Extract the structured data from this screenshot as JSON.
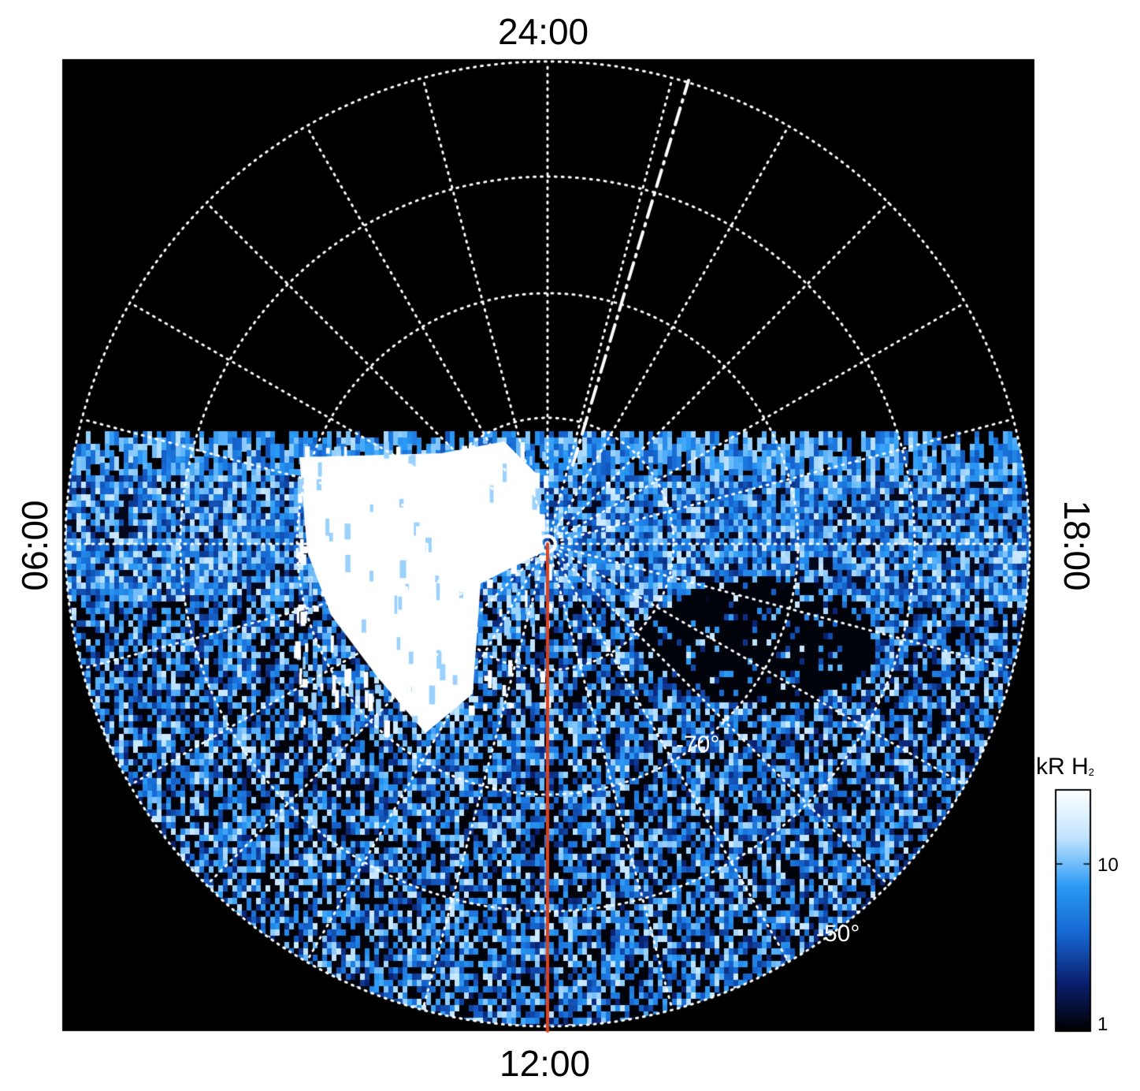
{
  "time_labels": {
    "top": "24:00",
    "bottom": "12:00",
    "left": "06:00",
    "right": "18:00"
  },
  "latitude_labels": {
    "inner": "-70°",
    "outer": "-50°"
  },
  "colorbar": {
    "title": "kR H",
    "title_subscript": "2",
    "ticks": [
      "10",
      "1"
    ],
    "colors": [
      "#000000",
      "#0a1f6e",
      "#1565d0",
      "#2a9af5",
      "#bfe3ff",
      "#ffffff"
    ]
  },
  "colors": {
    "background": "#000000",
    "grid": "#ffffff",
    "meridian": "#e0401a"
  }
}
